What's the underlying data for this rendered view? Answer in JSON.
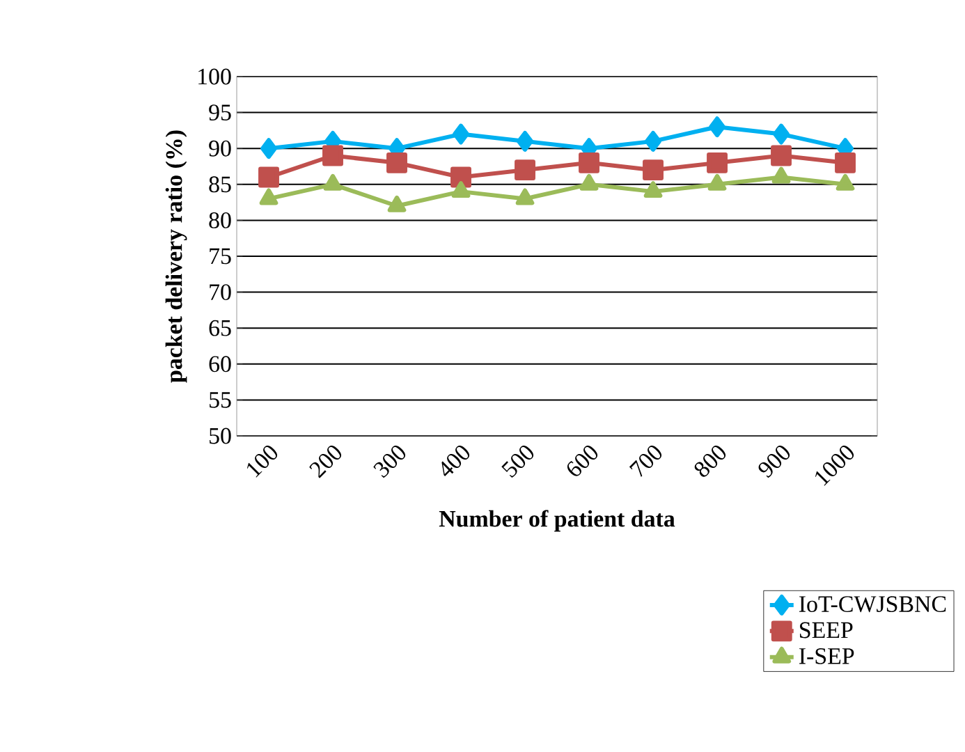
{
  "chart_data": {
    "type": "line",
    "xlabel": "Number of patient data",
    "ylabel": "packet delivery ratio (%)",
    "categories": [
      "100",
      "200",
      "300",
      "400",
      "500",
      "600",
      "700",
      "800",
      "900",
      "1000"
    ],
    "ylim": [
      50,
      100
    ],
    "yticks": [
      50,
      55,
      60,
      65,
      70,
      75,
      80,
      85,
      90,
      95,
      100
    ],
    "grid": "y",
    "legend": "bottom right",
    "line_style": "solid",
    "series": [
      {
        "name": "IoT-CWJSBNC",
        "color": "#00b0f0",
        "marker": "diamond",
        "values": [
          90,
          91,
          90,
          92,
          91,
          90,
          91,
          93,
          92,
          90
        ]
      },
      {
        "name": "SEEP",
        "color": "#c0504d",
        "marker": "square",
        "values": [
          86,
          89,
          88,
          86,
          87,
          88,
          87,
          88,
          89,
          88
        ]
      },
      {
        "name": "I-SEP",
        "color": "#9bbb59",
        "marker": "triangle",
        "values": [
          83,
          85,
          82,
          84,
          83,
          85,
          84,
          85,
          86,
          85
        ]
      }
    ]
  }
}
